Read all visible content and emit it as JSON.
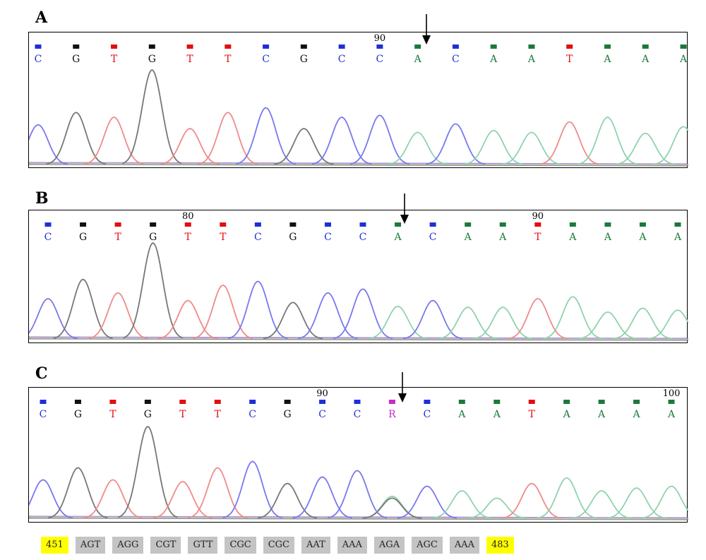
{
  "colors": {
    "A": "#1b7a3a",
    "C": "#1f2fd6",
    "G": "#111111",
    "T": "#e01010",
    "R": "#c82ac8"
  },
  "trace_colors": {
    "A": "#8fd3ad",
    "C": "#7878f0",
    "G": "#777777",
    "T": "#f08a8a",
    "R": "#c82ac8"
  },
  "panels": [
    {
      "label": "A",
      "bases": [
        "C",
        "G",
        "T",
        "G",
        "T",
        "T",
        "C",
        "G",
        "C",
        "C",
        "A",
        "C",
        "A",
        "A",
        "T",
        "A",
        "A",
        "A"
      ],
      "peak_heights": [
        0.42,
        0.55,
        0.5,
        1.0,
        0.38,
        0.55,
        0.6,
        0.38,
        0.5,
        0.52,
        0.34,
        0.43,
        0.36,
        0.34,
        0.45,
        0.5,
        0.33,
        0.4
      ],
      "position_labels": [
        {
          "index": 9,
          "text": "90"
        }
      ],
      "arrow_index": 10
    },
    {
      "label": "B",
      "bases": [
        "C",
        "G",
        "T",
        "G",
        "T",
        "T",
        "C",
        "G",
        "C",
        "C",
        "A",
        "C",
        "A",
        "A",
        "T",
        "A",
        "A",
        "A",
        "A"
      ],
      "peak_heights": [
        0.42,
        0.62,
        0.48,
        1.0,
        0.4,
        0.56,
        0.6,
        0.38,
        0.48,
        0.52,
        0.34,
        0.4,
        0.33,
        0.33,
        0.42,
        0.44,
        0.28,
        0.32,
        0.3
      ],
      "position_labels": [
        {
          "index": 4,
          "text": "80"
        },
        {
          "index": 14,
          "text": "90"
        }
      ],
      "arrow_index": 10
    },
    {
      "label": "C",
      "bases": [
        "C",
        "G",
        "T",
        "G",
        "T",
        "T",
        "C",
        "G",
        "C",
        "C",
        "R",
        "C",
        "A",
        "A",
        "T",
        "A",
        "A",
        "A",
        "A"
      ],
      "peak_heights": [
        0.42,
        0.55,
        0.42,
        1.0,
        0.4,
        0.55,
        0.62,
        0.38,
        0.45,
        0.52,
        0.24,
        0.35,
        0.3,
        0.22,
        0.38,
        0.44,
        0.3,
        0.33,
        0.35
      ],
      "position_labels": [
        {
          "index": 8,
          "text": "90"
        },
        {
          "index": 18,
          "text": "100"
        }
      ],
      "arrow_index": 10
    }
  ],
  "codon_strip": [
    {
      "text": "451",
      "kind": "position"
    },
    {
      "text": "AGT",
      "kind": "codon"
    },
    {
      "text": "AGG",
      "kind": "codon"
    },
    {
      "text": "CGT",
      "kind": "codon"
    },
    {
      "text": "GTT",
      "kind": "codon"
    },
    {
      "text": "CGC",
      "kind": "codon"
    },
    {
      "text": "CGC",
      "kind": "codon"
    },
    {
      "text": "AAT",
      "kind": "codon"
    },
    {
      "text": "AAA",
      "kind": "codon"
    },
    {
      "text": "AGA",
      "kind": "codon"
    },
    {
      "text": "AGC",
      "kind": "codon"
    },
    {
      "text": "AAA",
      "kind": "codon"
    },
    {
      "text": "483",
      "kind": "position"
    }
  ]
}
